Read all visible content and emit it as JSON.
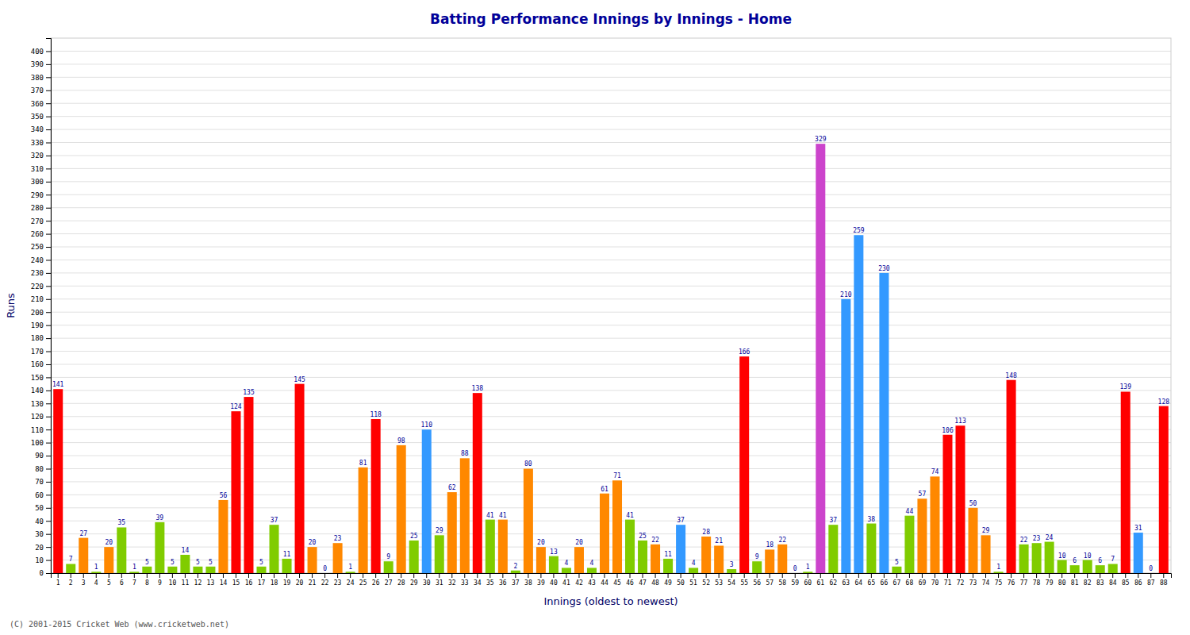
{
  "chart_data": {
    "type": "bar",
    "title": "Batting Performance Innings by Innings - Home",
    "xlabel": "Innings (oldest to newest)",
    "ylabel": "Runs",
    "annotations": [
      "(C) 2001-2015 Cricket Web (www.cricketweb.net)"
    ],
    "categories": [
      1,
      2,
      3,
      4,
      5,
      6,
      7,
      8,
      9,
      10,
      11,
      12,
      13,
      14,
      15,
      16,
      17,
      18,
      19,
      20,
      21,
      22,
      23,
      24,
      25,
      26,
      27,
      28,
      29,
      30,
      31,
      32,
      33,
      34,
      35,
      36,
      37,
      38,
      39,
      40,
      41,
      42,
      43,
      44,
      45,
      46,
      47,
      48,
      49,
      50,
      51,
      52,
      53,
      54,
      55,
      56,
      57,
      58,
      59,
      60,
      61,
      62,
      63,
      64,
      65,
      66,
      67,
      68,
      69,
      70,
      71,
      72,
      73,
      74,
      75,
      76,
      77,
      78,
      79,
      80,
      81,
      82,
      83,
      84,
      85,
      86,
      87,
      88
    ],
    "values": [
      141,
      7,
      27,
      1,
      20,
      35,
      1,
      5,
      39,
      5,
      14,
      5,
      5,
      56,
      124,
      135,
      5,
      37,
      11,
      145,
      20,
      0,
      23,
      1,
      81,
      118,
      9,
      98,
      25,
      110,
      29,
      62,
      88,
      138,
      41,
      41,
      2,
      80,
      20,
      13,
      4,
      20,
      4,
      61,
      71,
      41,
      25,
      22,
      11,
      37,
      4,
      28,
      21,
      3,
      166,
      9,
      18,
      22,
      0,
      1,
      329,
      37,
      210,
      259,
      38,
      230,
      5,
      44,
      57,
      74,
      106,
      113,
      50,
      29,
      1,
      148,
      22,
      23,
      24,
      10,
      6,
      10,
      6,
      7,
      139,
      31,
      0,
      128
    ],
    "colors": [
      "#ff0000",
      "#80cc00",
      "#ff8800",
      "#80cc00",
      "#ff8800",
      "#80cc00",
      "#80cc00",
      "#80cc00",
      "#80cc00",
      "#80cc00",
      "#80cc00",
      "#80cc00",
      "#80cc00",
      "#ff8800",
      "#ff0000",
      "#ff0000",
      "#80cc00",
      "#80cc00",
      "#80cc00",
      "#ff0000",
      "#ff8800",
      "#ff8800",
      "#ff8800",
      "#80cc00",
      "#ff8800",
      "#ff0000",
      "#80cc00",
      "#ff8800",
      "#80cc00",
      "#3399ff",
      "#80cc00",
      "#ff8800",
      "#ff8800",
      "#ff0000",
      "#80cc00",
      "#ff8800",
      "#80cc00",
      "#ff8800",
      "#ff8800",
      "#80cc00",
      "#80cc00",
      "#ff8800",
      "#80cc00",
      "#ff8800",
      "#ff8800",
      "#80cc00",
      "#80cc00",
      "#ff8800",
      "#80cc00",
      "#3399ff",
      "#80cc00",
      "#ff8800",
      "#ff8800",
      "#80cc00",
      "#ff0000",
      "#80cc00",
      "#ff8800",
      "#ff8800",
      "#ff8800",
      "#80cc00",
      "#cc44cc",
      "#80cc00",
      "#3399ff",
      "#3399ff",
      "#80cc00",
      "#3399ff",
      "#80cc00",
      "#80cc00",
      "#ff8800",
      "#ff8800",
      "#ff0000",
      "#ff0000",
      "#ff8800",
      "#ff8800",
      "#80cc00",
      "#ff0000",
      "#80cc00",
      "#80cc00",
      "#80cc00",
      "#80cc00",
      "#80cc00",
      "#80cc00",
      "#80cc00",
      "#80cc00",
      "#ff0000",
      "#3399ff",
      "#80cc00",
      "#ff0000"
    ],
    "ylim": [
      0,
      410
    ],
    "yticks": [
      0,
      10,
      20,
      30,
      40,
      50,
      60,
      70,
      80,
      90,
      100,
      110,
      120,
      130,
      140,
      150,
      160,
      170,
      180,
      190,
      200,
      210,
      220,
      230,
      240,
      250,
      260,
      270,
      280,
      290,
      300,
      310,
      320,
      330,
      340,
      350,
      360,
      370,
      380,
      390,
      400
    ],
    "grid": true,
    "data_labels": true
  }
}
